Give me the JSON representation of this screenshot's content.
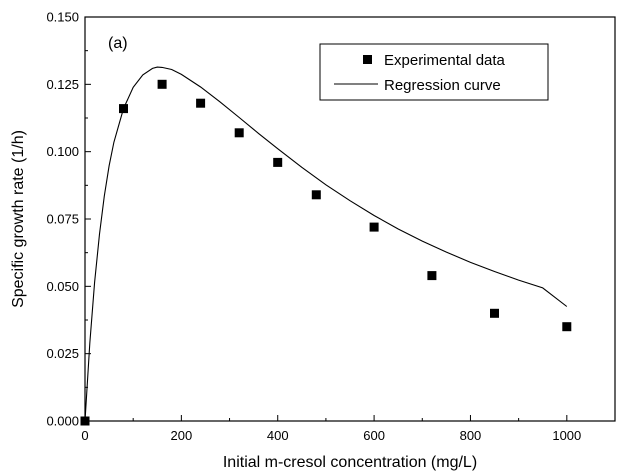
{
  "chart_data": {
    "type": "scatter",
    "panel_label": "(a)",
    "xlabel": "Initial m-cresol concentration (mg/L)",
    "ylabel": "Specific growth rate (1/h)",
    "xlim": [
      0,
      1100
    ],
    "ylim": [
      0,
      0.15
    ],
    "xticks": [
      "0",
      "200",
      "400",
      "600",
      "800",
      "1000"
    ],
    "yticks": [
      "0.000",
      "0.025",
      "0.050",
      "0.075",
      "0.100",
      "0.125",
      "0.150"
    ],
    "grid": false,
    "legend_position": "top-right",
    "series": [
      {
        "name": "Experimental data",
        "style": "square-marker",
        "x": [
          0,
          80,
          160,
          240,
          320,
          400,
          480,
          600,
          720,
          850,
          1000
        ],
        "y": [
          0.0,
          0.116,
          0.125,
          0.118,
          0.107,
          0.096,
          0.084,
          0.072,
          0.054,
          0.04,
          0.035
        ]
      },
      {
        "name": "Regression curve",
        "style": "line",
        "x": [
          0,
          10,
          20,
          30,
          40,
          50,
          60,
          80,
          100,
          120,
          140,
          150,
          160,
          180,
          200,
          240,
          280,
          320,
          360,
          400,
          450,
          500,
          550,
          600,
          650,
          700,
          750,
          800,
          850,
          900,
          950,
          1000
        ],
        "y": [
          0.0,
          0.0288,
          0.0515,
          0.0694,
          0.0835,
          0.0947,
          0.1035,
          0.116,
          0.1239,
          0.1285,
          0.1309,
          0.1314,
          0.1313,
          0.1305,
          0.1287,
          0.124,
          0.1185,
          0.1127,
          0.1068,
          0.1011,
          0.0942,
          0.0877,
          0.0818,
          0.0763,
          0.0713,
          0.0668,
          0.0627,
          0.0589,
          0.0555,
          0.0523,
          0.0494,
          0.0425
        ]
      }
    ]
  }
}
